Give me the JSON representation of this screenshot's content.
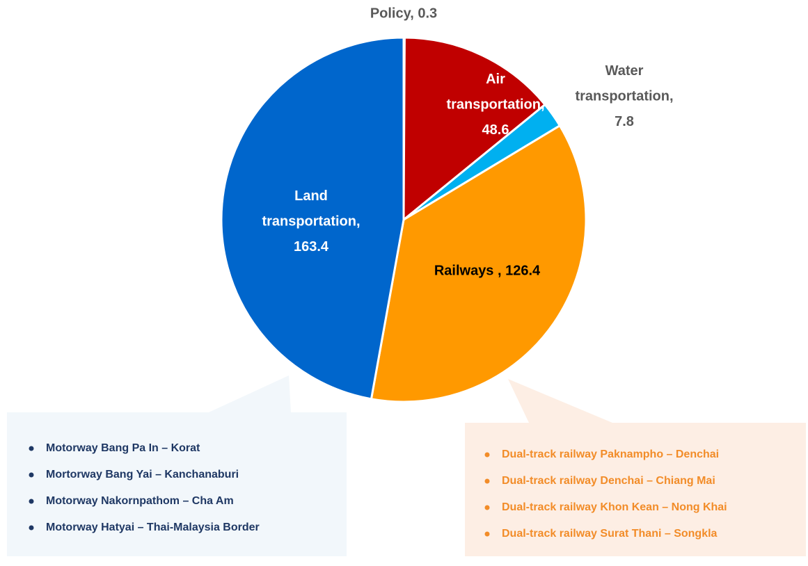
{
  "chart_data": {
    "type": "pie",
    "labels": [
      "Policy, 0.3",
      "Air transportation, 48.6",
      "Water transportation, 7.8",
      "Railways , 126.4",
      "Land transportation, 163.4"
    ],
    "values": [
      0.3,
      48.6,
      7.8,
      126.4,
      163.4
    ],
    "colors": [
      "#1f3864",
      "#c00000",
      "#00b0f0",
      "#ff9900",
      "#0066cc"
    ]
  },
  "callouts": [
    {
      "items": [
        "Motorway Bang Pa In – Korat",
        "Mortorway Bang Yai – Kanchanaburi",
        "Motorway Nakornpathom – Cha Am",
        "Motorway Hatyai – Thai-Malaysia Border"
      ]
    },
    {
      "items": [
        "Dual-track railway Paknampho – Denchai",
        "Dual-track railway Denchai – Chiang Mai",
        "Dual-track railway Khon Kean – Nong Khai",
        "Dual-track railway Surat Thani – Songkla"
      ]
    }
  ]
}
